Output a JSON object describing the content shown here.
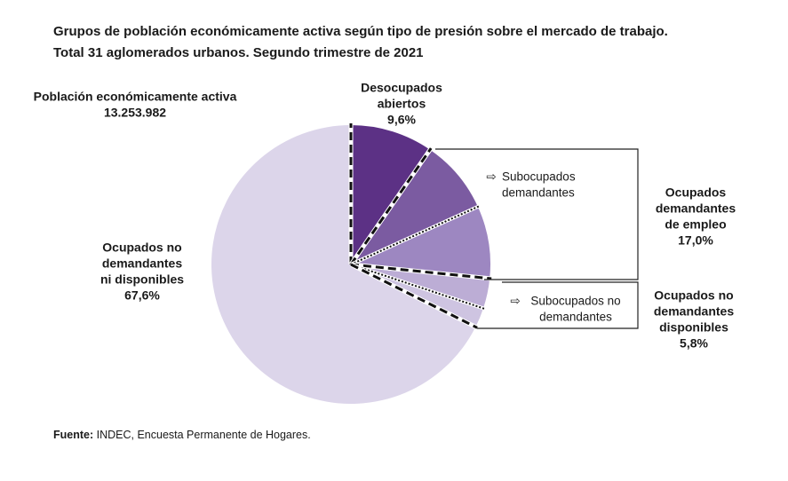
{
  "chart_data": {
    "type": "pie",
    "title": "Grupos de población económicamente activa según tipo de presión sobre el mercado de trabajo.",
    "subtitle": "Total 31 aglomerados urbanos. Segundo trimestre de 2021",
    "total_name": "Población económicamente activa",
    "total": {
      "value": 13253982,
      "label": "13.253.982"
    },
    "categories": [
      [
        "Desocupados",
        "abiertos"
      ],
      [
        "Subocupados",
        "demandantes"
      ],
      null,
      [
        "Subocupados no",
        "demandantes"
      ],
      null,
      [
        "Ocupados no",
        "demandantes",
        "ni disponibles"
      ]
    ],
    "values": [
      9.6,
      8.6,
      8.4,
      3.5,
      2.3,
      67.6
    ],
    "value_labels": [
      "9,6%",
      null,
      null,
      null,
      null,
      "67,6%"
    ],
    "colors": [
      "#5c3185",
      "#7b5ba1",
      "#9d87c1",
      "#bcadd5",
      "#cec4e1",
      "#dcd5ea"
    ],
    "groups": [
      {
        "name": [
          "Ocupados",
          "demandantes",
          "de empleo"
        ],
        "value": 17.0,
        "value_label": "17,0%"
      },
      {
        "name": [
          "Ocupados no",
          "demandantes",
          "disponibles"
        ],
        "value": 5.8,
        "value_label": "5,8%"
      }
    ],
    "source": {
      "label": "Fuente:",
      "text": "INDEC, Encuesta Permanente de Hogares."
    }
  }
}
